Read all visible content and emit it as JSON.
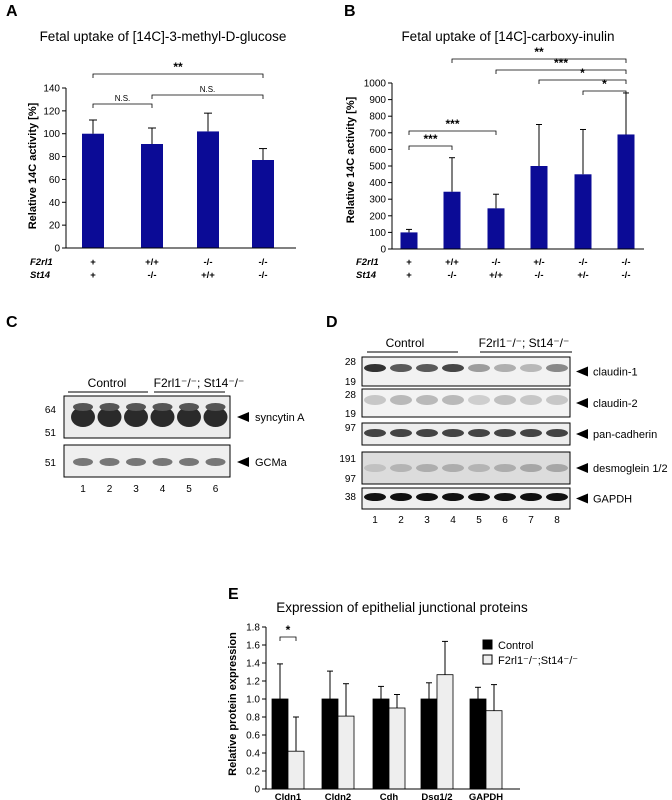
{
  "panels": {
    "a": {
      "label": "A",
      "title": "Fetal uptake of [14C]-3-methyl-D-glucose",
      "ylabel": "Relative 14C activity [%]",
      "ticks": [
        "0",
        "20",
        "40",
        "60",
        "80",
        "100",
        "120",
        "140"
      ],
      "row1_label": "F2rl1",
      "row2_label": "St14",
      "brackets": [
        {
          "text": "N.S.",
          "from": 0,
          "to": 1
        },
        {
          "text": "N.S.",
          "from": 1,
          "to": 3
        },
        {
          "text": "**",
          "from": 0,
          "to": 3
        }
      ]
    },
    "b": {
      "label": "B",
      "title": "Fetal uptake of [14C]-carboxy-inulin",
      "ylabel": "Relative 14C activity [%]",
      "ticks": [
        "0",
        "100",
        "200",
        "300",
        "400",
        "500",
        "600",
        "700",
        "800",
        "900",
        "1000"
      ],
      "row1_label": "F2rl1",
      "row2_label": "St14",
      "brackets": [
        {
          "text": "***",
          "from": 0,
          "to": 1
        },
        {
          "text": "***",
          "from": 0,
          "to": 2
        },
        {
          "text": "**",
          "from": 1,
          "to": 5
        },
        {
          "text": "***",
          "from": 2,
          "to": 5
        },
        {
          "text": "*",
          "from": 3,
          "to": 5
        },
        {
          "text": "*",
          "from": 4,
          "to": 5
        }
      ]
    },
    "c": {
      "label": "C",
      "control": "Control",
      "mutant": "F2rl1⁻/⁻; St14⁻/⁻",
      "strips": [
        {
          "label": "syncytin A",
          "mw": [
            "64",
            "51"
          ]
        },
        {
          "label": "GCMa",
          "mw": [
            "51"
          ]
        }
      ],
      "lanes": [
        "1",
        "2",
        "3",
        "4",
        "5",
        "6"
      ]
    },
    "d": {
      "label": "D",
      "control": "Control",
      "mutant": "F2rl1⁻/⁻; St14⁻/⁻",
      "strips": [
        {
          "label": "claudin-1",
          "mw": [
            "28",
            "19"
          ]
        },
        {
          "label": "claudin-2",
          "mw": [
            "28",
            "19"
          ]
        },
        {
          "label": "pan-cadherin",
          "mw": [
            "97"
          ]
        },
        {
          "label": "desmoglein 1/2",
          "mw": [
            "191",
            "97"
          ]
        },
        {
          "label": "GAPDH",
          "mw": [
            "38"
          ]
        }
      ],
      "lanes": [
        "1",
        "2",
        "3",
        "4",
        "5",
        "6",
        "7",
        "8"
      ]
    },
    "e": {
      "label": "E",
      "title": "Expression of epithelial junctional proteins",
      "ylabel": "Relative protein expression",
      "ticks": [
        "0",
        "0.2",
        "0.4",
        "0.6",
        "0.8",
        "1.0",
        "1.2",
        "1.4",
        "1.6",
        "1.8"
      ],
      "legend": [
        "Control",
        "F2rl1⁻/⁻;St14⁻/⁻"
      ],
      "brackets": [
        {
          "text": "*",
          "group": 0
        }
      ]
    }
  },
  "colors": {
    "bar_blue": "#0b0b96",
    "bar_black": "#000000",
    "bar_light": "#eeeeee"
  },
  "chart_data": [
    {
      "type": "bar",
      "title": "Fetal uptake of [14C]-3-methyl-D-glucose",
      "ylabel": "Relative 14C activity [%]",
      "ylim": [
        0,
        140
      ],
      "categories": [
        "F2rl1 +, St14 +",
        "F2rl1 +/+, St14 -/-",
        "F2rl1 -/-, St14 +/+",
        "F2rl1 -/-, St14 -/-"
      ],
      "genotype_rows": [
        [
          "+",
          "+/+",
          "-/-",
          "-/-"
        ],
        [
          "+",
          "-/-",
          "+/+",
          "-/-"
        ]
      ],
      "values": [
        100,
        91,
        102,
        77
      ],
      "errors": [
        12,
        14,
        16,
        10
      ]
    },
    {
      "type": "bar",
      "title": "Fetal uptake of [14C]-carboxy-inulin",
      "ylabel": "Relative 14C activity [%]",
      "ylim": [
        0,
        1000
      ],
      "categories": [
        "F2rl1 +, St14 +",
        "F2rl1 +/+, St14 -/-",
        "F2rl1 -/-, St14 +/+",
        "F2rl1 +/-, St14 -/-",
        "F2rl1 -/-, St14 +/-",
        "F2rl1 -/-, St14 -/-"
      ],
      "genotype_rows": [
        [
          "+",
          "+/+",
          "-/-",
          "+/-",
          "-/-",
          "-/-"
        ],
        [
          "+",
          "-/-",
          "+/+",
          "-/-",
          "+/-",
          "-/-"
        ]
      ],
      "values": [
        100,
        345,
        245,
        500,
        450,
        690
      ],
      "errors": [
        18,
        205,
        85,
        250,
        270,
        250
      ]
    },
    {
      "type": "bar",
      "title": "Expression of epithelial junctional proteins",
      "ylabel": "Relative protein expression",
      "ylim": [
        0,
        1.8
      ],
      "categories": [
        "Cldn1",
        "Cldn2",
        "Cdh",
        "Dsg1/2",
        "GAPDH"
      ],
      "series": [
        {
          "name": "Control",
          "values": [
            1.0,
            1.0,
            1.0,
            1.0,
            1.0
          ],
          "errors": [
            0.39,
            0.31,
            0.14,
            0.18,
            0.13
          ]
        },
        {
          "name": "F2rl1-/-;St14-/-",
          "values": [
            0.42,
            0.81,
            0.9,
            1.27,
            0.87
          ],
          "errors": [
            0.38,
            0.36,
            0.15,
            0.37,
            0.29
          ]
        }
      ]
    }
  ]
}
